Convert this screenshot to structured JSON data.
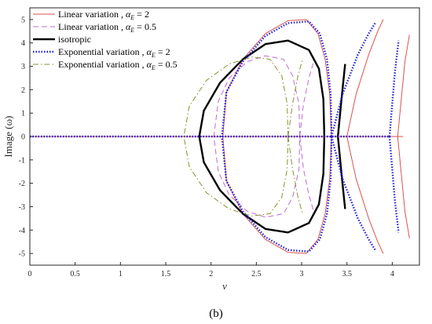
{
  "chart_data": {
    "type": "line",
    "xlabel": "ν",
    "ylabel": "Image (ω)",
    "caption": "(b)",
    "xlim": [
      0,
      4.3
    ],
    "ylim": [
      -5.5,
      5.5
    ],
    "xticks": [
      "0",
      "0.5",
      "1",
      "1.5",
      "2",
      "2.5",
      "3",
      "3.5",
      "4"
    ],
    "yticks": [
      "5",
      "4",
      "3",
      "2",
      "1",
      "0",
      "-1",
      "-2",
      "-3",
      "-4",
      "-5"
    ],
    "grid": false,
    "legend_position": "top-left",
    "series": [
      {
        "name": "Linear variation , α_E = 2",
        "color": "#d9534f",
        "style": "solid",
        "width": 1,
        "segments": [
          [
            [
              0,
              0
            ],
            [
              4.12,
              0
            ]
          ],
          [
            [
              3.33,
              0
            ],
            [
              3.31,
              1.8
            ],
            [
              3.26,
              3.3
            ],
            [
              3.18,
              4.4
            ],
            [
              3.05,
              5.0
            ],
            [
              2.85,
              4.95
            ],
            [
              2.6,
              4.4
            ],
            [
              2.35,
              3.3
            ],
            [
              2.17,
              1.9
            ],
            [
              2.13,
              0
            ],
            [
              2.17,
              -1.9
            ],
            [
              2.35,
              -3.3
            ],
            [
              2.6,
              -4.4
            ],
            [
              2.85,
              -4.95
            ],
            [
              3.05,
              -5.0
            ],
            [
              3.18,
              -4.4
            ],
            [
              3.26,
              -3.3
            ],
            [
              3.31,
              -1.8
            ],
            [
              3.33,
              0
            ]
          ],
          [
            [
              3.5,
              0
            ],
            [
              3.6,
              1.8
            ],
            [
              3.74,
              3.5
            ],
            [
              3.84,
              4.5
            ],
            [
              3.9,
              5.0
            ]
          ],
          [
            [
              3.5,
              0
            ],
            [
              3.6,
              -1.8
            ],
            [
              3.74,
              -3.5
            ],
            [
              3.84,
              -4.5
            ],
            [
              3.9,
              -5.0
            ]
          ],
          [
            [
              4.06,
              0
            ],
            [
              4.1,
              1.6
            ],
            [
              4.14,
              3.2
            ],
            [
              4.19,
              4.35
            ]
          ],
          [
            [
              4.06,
              0
            ],
            [
              4.1,
              -1.6
            ],
            [
              4.14,
              -3.2
            ],
            [
              4.19,
              -4.35
            ]
          ]
        ]
      },
      {
        "name": "Linear variation , α_E = 0.5",
        "color": "#c06bd6",
        "style": "dashed",
        "width": 1,
        "segments": [
          [
            [
              2.98,
              0
            ],
            [
              2.97,
              1.4
            ],
            [
              2.9,
              2.6
            ],
            [
              2.8,
              3.3
            ],
            [
              2.6,
              3.45
            ],
            [
              2.4,
              3.2
            ],
            [
              2.2,
              2.5
            ],
            [
              2.08,
              1.5
            ],
            [
              2.03,
              0
            ],
            [
              2.08,
              -1.5
            ],
            [
              2.2,
              -2.5
            ],
            [
              2.4,
              -3.2
            ],
            [
              2.6,
              -3.45
            ],
            [
              2.8,
              -3.3
            ],
            [
              2.9,
              -2.6
            ],
            [
              2.97,
              -1.4
            ],
            [
              2.98,
              0
            ]
          ],
          [
            [
              2.98,
              0
            ],
            [
              3.02,
              1.4
            ],
            [
              3.08,
              2.5
            ],
            [
              3.14,
              3.3
            ]
          ],
          [
            [
              2.98,
              0
            ],
            [
              3.02,
              -1.4
            ],
            [
              3.08,
              -2.5
            ],
            [
              3.14,
              -3.3
            ]
          ]
        ]
      },
      {
        "name": "isotropic",
        "color": "#000000",
        "style": "solid",
        "width": 2.4,
        "segments": [
          [
            [
              3.25,
              0
            ],
            [
              3.24,
              1.6
            ],
            [
              3.19,
              2.9
            ],
            [
              3.08,
              3.7
            ],
            [
              2.85,
              4.1
            ],
            [
              2.6,
              3.95
            ],
            [
              2.35,
              3.3
            ],
            [
              2.1,
              2.3
            ],
            [
              1.92,
              1.1
            ],
            [
              1.87,
              0
            ],
            [
              1.92,
              -1.1
            ],
            [
              2.1,
              -2.3
            ],
            [
              2.35,
              -3.3
            ],
            [
              2.6,
              -3.95
            ],
            [
              2.85,
              -4.1
            ],
            [
              3.08,
              -3.7
            ],
            [
              3.19,
              -2.9
            ],
            [
              3.24,
              -1.6
            ],
            [
              3.25,
              0
            ]
          ],
          [
            [
              3.48,
              -3.1
            ],
            [
              3.44,
              -1.6
            ],
            [
              3.4,
              0
            ],
            [
              3.44,
              1.6
            ],
            [
              3.48,
              3.1
            ]
          ]
        ]
      },
      {
        "name": "Exponential variation , α_E = 2",
        "color": "#1f1fd6",
        "style": "dotted",
        "width": 2.4,
        "segments": [
          [
            [
              0,
              0
            ],
            [
              3.97,
              0
            ]
          ],
          [
            [
              3.33,
              0
            ],
            [
              3.32,
              1.8
            ],
            [
              3.28,
              3.3
            ],
            [
              3.2,
              4.4
            ],
            [
              3.08,
              4.92
            ],
            [
              2.85,
              4.85
            ],
            [
              2.6,
              4.3
            ],
            [
              2.35,
              3.2
            ],
            [
              2.17,
              1.9
            ],
            [
              2.12,
              0
            ],
            [
              2.17,
              -1.9
            ],
            [
              2.35,
              -3.2
            ],
            [
              2.6,
              -4.3
            ],
            [
              2.85,
              -4.85
            ],
            [
              3.08,
              -4.92
            ],
            [
              3.2,
              -4.4
            ],
            [
              3.28,
              -3.3
            ],
            [
              3.32,
              -1.8
            ],
            [
              3.33,
              0
            ]
          ],
          [
            [
              3.33,
              0
            ],
            [
              3.45,
              1.8
            ],
            [
              3.62,
              3.5
            ],
            [
              3.74,
              4.4
            ],
            [
              3.82,
              4.9
            ]
          ],
          [
            [
              3.33,
              0
            ],
            [
              3.45,
              -1.8
            ],
            [
              3.62,
              -3.5
            ],
            [
              3.74,
              -4.4
            ],
            [
              3.82,
              -4.9
            ]
          ],
          [
            [
              3.97,
              0
            ],
            [
              4.0,
              1.4
            ],
            [
              4.03,
              2.8
            ],
            [
              4.07,
              4.1
            ]
          ],
          [
            [
              3.97,
              0
            ],
            [
              4.0,
              -1.4
            ],
            [
              4.03,
              -2.8
            ],
            [
              4.07,
              -4.1
            ]
          ]
        ]
      },
      {
        "name": "Exponential variation , α_E = 0.5",
        "color": "#8a8f2e",
        "style": "dashdot",
        "width": 1,
        "segments": [
          [
            [
              2.85,
              0
            ],
            [
              2.84,
              1.4
            ],
            [
              2.78,
              2.6
            ],
            [
              2.65,
              3.3
            ],
            [
              2.45,
              3.4
            ],
            [
              2.2,
              3.1
            ],
            [
              1.95,
              2.4
            ],
            [
              1.76,
              1.3
            ],
            [
              1.7,
              0
            ],
            [
              1.76,
              -1.3
            ],
            [
              1.95,
              -2.4
            ],
            [
              2.2,
              -3.1
            ],
            [
              2.45,
              -3.4
            ],
            [
              2.65,
              -3.3
            ],
            [
              2.78,
              -2.6
            ],
            [
              2.84,
              -1.4
            ],
            [
              2.85,
              0
            ]
          ],
          [
            [
              2.85,
              0
            ],
            [
              2.9,
              1.4
            ],
            [
              2.96,
              2.6
            ],
            [
              3.01,
              3.3
            ]
          ],
          [
            [
              2.85,
              0
            ],
            [
              2.9,
              -1.4
            ],
            [
              2.96,
              -2.6
            ],
            [
              3.01,
              -3.3
            ]
          ]
        ]
      }
    ],
    "legend": [
      {
        "text": "Linear variation , ",
        "math": "α",
        "sub": "E",
        "tail": " = 2"
      },
      {
        "text": "Linear variation , ",
        "math": "α",
        "sub": "E",
        "tail": " = 0.5"
      },
      {
        "text": "isotropic",
        "math": "",
        "sub": "",
        "tail": ""
      },
      {
        "text": "Exponential variation , ",
        "math": "α",
        "sub": "E",
        "tail": " = 2"
      },
      {
        "text": "Exponential variation , ",
        "math": "α",
        "sub": "E",
        "tail": " = 0.5"
      }
    ]
  }
}
